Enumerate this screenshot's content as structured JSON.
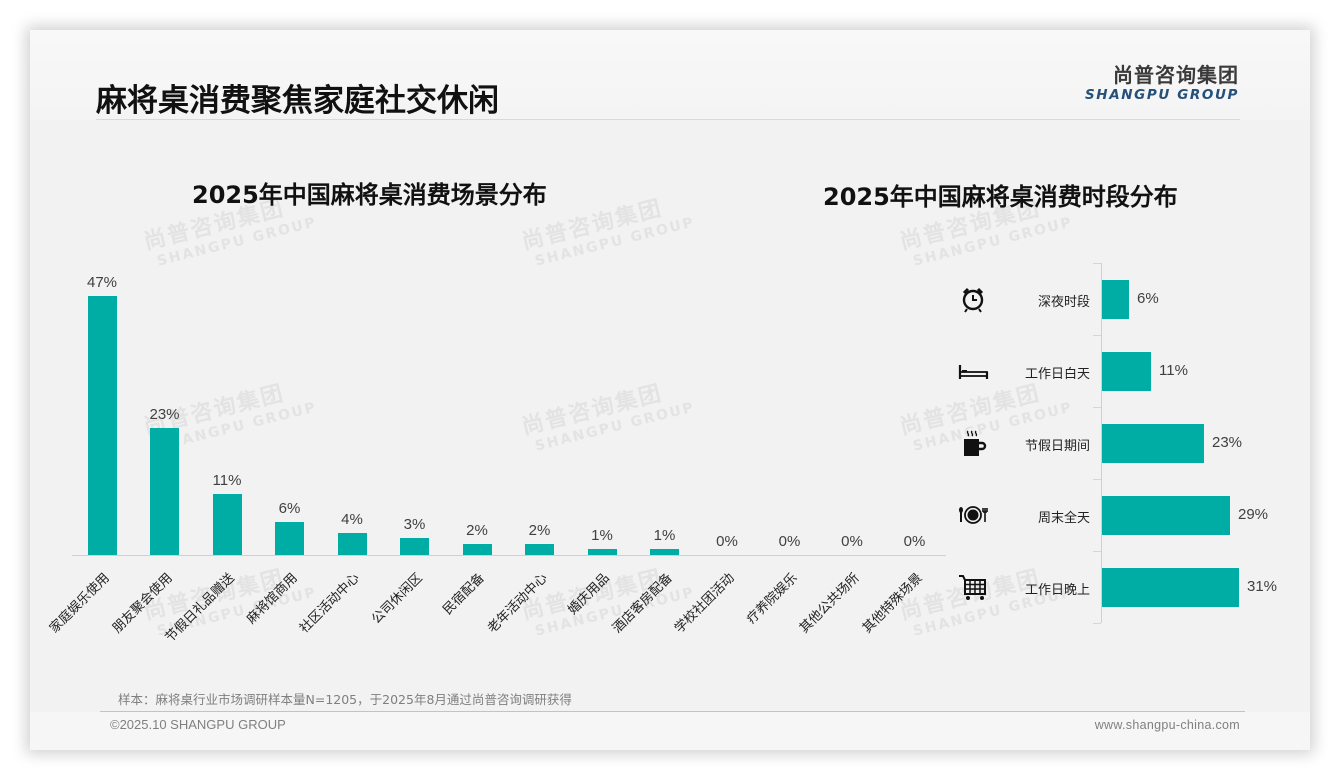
{
  "header": {
    "title": "麻将桌消费聚焦家庭社交休闲",
    "logo_cn": "尚普咨询集团",
    "logo_en": "SHANGPU GROUP"
  },
  "watermark": {
    "cn": "尚普咨询集团",
    "en": "SHANGPU GROUP"
  },
  "colors": {
    "bar": "#00ada5",
    "logo_en": "#24507a",
    "title": "#111111"
  },
  "chart_data": [
    {
      "type": "bar",
      "title": "2025年中国麻将桌消费场景分布",
      "xlabel": "",
      "ylabel": "",
      "categories": [
        "家庭娱乐使用",
        "朋友聚会使用",
        "节假日礼品赠送",
        "麻将馆商用",
        "社区活动中心",
        "公司休闲区",
        "民宿配备",
        "老年活动中心",
        "婚庆用品",
        "酒店客房配备",
        "学校社团活动",
        "疗养院娱乐",
        "其他公共场所",
        "其他特殊场景"
      ],
      "values": [
        47,
        23,
        11,
        6,
        4,
        3,
        2,
        2,
        1,
        1,
        0,
        0,
        0,
        0
      ],
      "value_labels": [
        "47%",
        "23%",
        "11%",
        "6%",
        "4%",
        "3%",
        "2%",
        "2%",
        "1%",
        "1%",
        "0%",
        "0%",
        "0%",
        "0%"
      ],
      "unit": "%",
      "grid": false,
      "legend": "none"
    },
    {
      "type": "bar",
      "orientation": "horizontal",
      "title": "2025年中国麻将桌消费时段分布",
      "categories": [
        "深夜时段",
        "工作日白天",
        "节假日期间",
        "周末全天",
        "工作日晚上"
      ],
      "values": [
        6,
        11,
        23,
        29,
        31
      ],
      "value_labels": [
        "6%",
        "11%",
        "23%",
        "29%",
        "31%"
      ],
      "icons": [
        "alarm-clock-icon",
        "bed-icon",
        "coffee-cup-icon",
        "plate-cutlery-icon",
        "shopping-cart-icon"
      ],
      "unit": "%",
      "grid": false,
      "legend": "none"
    }
  ],
  "footer": {
    "sample_note": "样本：麻将桌行业市场调研样本量N=1205，于2025年8月通过尚普咨询调研获得",
    "copyright": "©2025.10 SHANGPU GROUP",
    "url": "www.shangpu-china.com"
  }
}
